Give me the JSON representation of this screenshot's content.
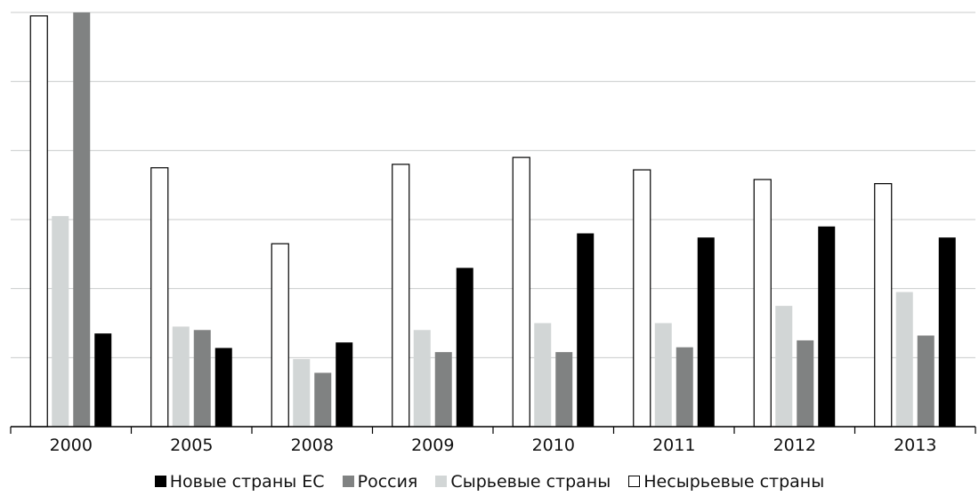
{
  "chart_data": {
    "type": "bar",
    "categories": [
      "2000",
      "2005",
      "2008",
      "2009",
      "2010",
      "2011",
      "2012",
      "2013"
    ],
    "series": [
      {
        "name": "Несырьевые страны",
        "color": "#ffffff",
        "stroke": "#000000",
        "values": [
          5.95,
          3.75,
          2.65,
          3.8,
          3.9,
          3.72,
          3.58,
          3.52
        ]
      },
      {
        "name": "Сырьевые страны",
        "color": "#d2d6d6",
        "stroke": "none",
        "values": [
          3.05,
          1.45,
          0.98,
          1.4,
          1.5,
          1.5,
          1.75,
          1.95
        ]
      },
      {
        "name": "Россия",
        "color": "#808282",
        "stroke": "none",
        "values": [
          6.0,
          1.4,
          0.78,
          1.08,
          1.08,
          1.15,
          1.25,
          1.32
        ]
      },
      {
        "name": "Новые страны ЕС",
        "color": "#000000",
        "stroke": "none",
        "values": [
          1.35,
          1.14,
          1.22,
          2.3,
          2.8,
          2.74,
          2.9,
          2.74
        ]
      }
    ],
    "ylim": [
      0,
      6
    ],
    "grid": true,
    "legend_position": "bottom",
    "xlabel": "",
    "ylabel": "",
    "title": ""
  },
  "legend": [
    {
      "label": "Новые страны ЕС",
      "color": "#000000",
      "border": "#000000"
    },
    {
      "label": "Россия",
      "color": "#808282",
      "border": "#808282"
    },
    {
      "label": "Сырьевые страны",
      "color": "#d2d6d6",
      "border": "#d2d6d6"
    },
    {
      "label": "Несырьевые страны",
      "color": "#ffffff",
      "border": "#000000"
    }
  ]
}
